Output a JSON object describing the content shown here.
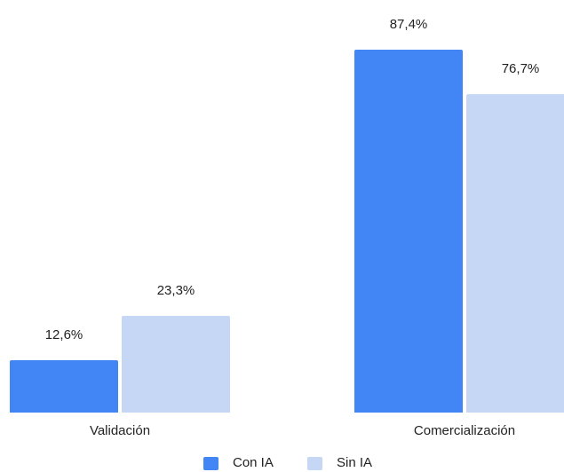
{
  "chart_data": {
    "type": "bar",
    "categories": [
      "Validación",
      "Comercialización"
    ],
    "series": [
      {
        "name": "Con IA",
        "color": "#4285f4",
        "values": [
          12.6,
          87.4
        ],
        "value_labels": [
          "12,6%",
          "87,4%"
        ]
      },
      {
        "name": "Sin IA",
        "color": "#c6d6f5",
        "values": [
          23.3,
          76.7
        ],
        "value_labels": [
          "23,3%",
          "76,7%"
        ]
      }
    ]
  }
}
